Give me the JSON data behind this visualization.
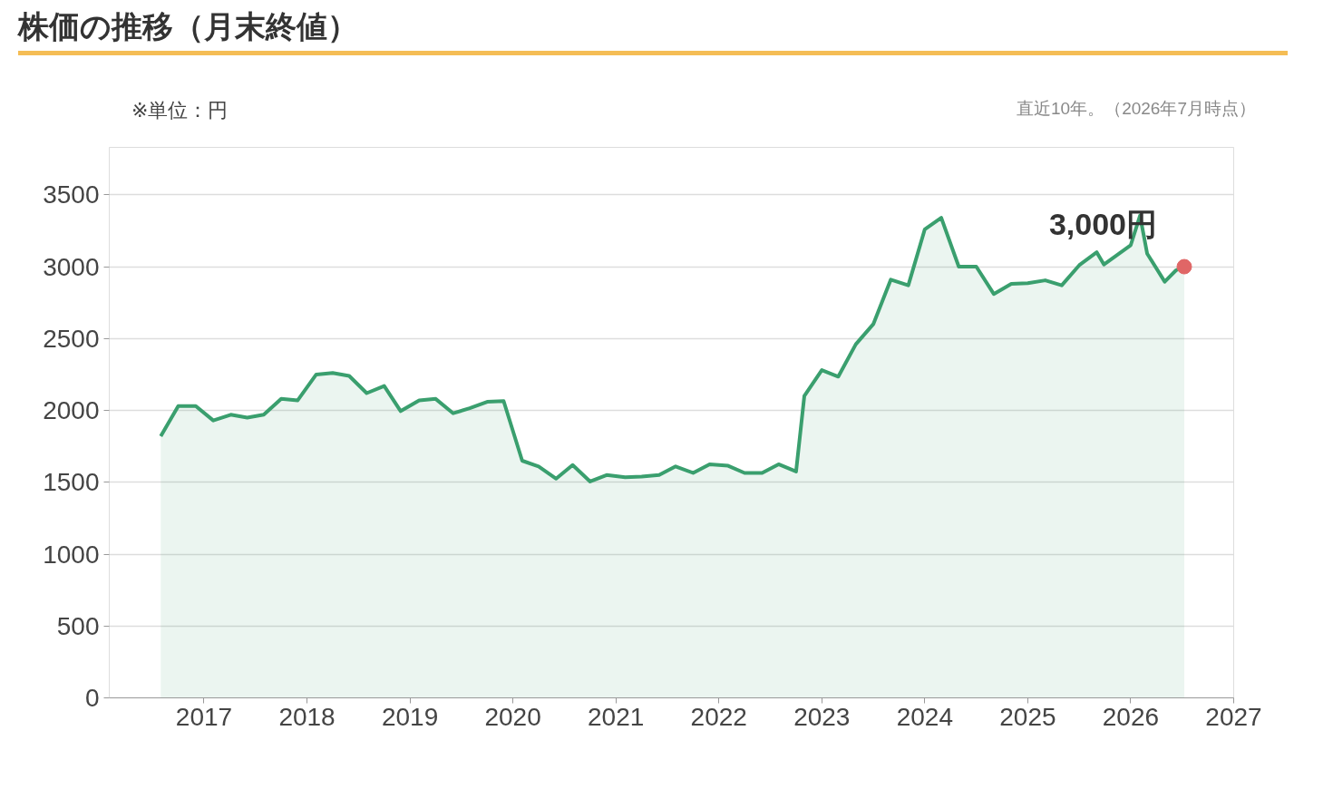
{
  "chart_data": {
    "type": "area",
    "title": "株価の推移（月末終値）",
    "annotations": [
      "※単位：円",
      "直近10年。（2026年7月時点）",
      {
        "text": "3,000円",
        "x": 2026.52,
        "y": 3000
      }
    ],
    "x": [
      2016.58,
      2016.75,
      2016.92,
      2017.09,
      2017.26,
      2017.42,
      2017.58,
      2017.75,
      2017.91,
      2018.09,
      2018.25,
      2018.41,
      2018.58,
      2018.75,
      2018.91,
      2019.09,
      2019.25,
      2019.42,
      2019.58,
      2019.75,
      2019.91,
      2020.09,
      2020.25,
      2020.42,
      2020.58,
      2020.75,
      2020.91,
      2021.09,
      2021.25,
      2021.42,
      2021.58,
      2021.75,
      2021.91,
      2022.09,
      2022.25,
      2022.42,
      2022.58,
      2022.75,
      2022.83,
      2023.0,
      2023.16,
      2023.33,
      2023.5,
      2023.67,
      2023.84,
      2024.0,
      2024.16,
      2024.33,
      2024.5,
      2024.67,
      2024.84,
      2025.0,
      2025.17,
      2025.33,
      2025.5,
      2025.67,
      2025.74,
      2026.0,
      2026.09,
      2026.16,
      2026.33,
      2026.44,
      2026.52
    ],
    "series": [
      {
        "color": "#3a9f6e",
        "values": [
          1820,
          2030,
          2030,
          1930,
          1970,
          1950,
          1970,
          2080,
          2070,
          2250,
          2260,
          2240,
          2120,
          2170,
          1995,
          2070,
          2080,
          1980,
          2015,
          2060,
          2065,
          1650,
          1610,
          1525,
          1620,
          1505,
          1550,
          1535,
          1540,
          1550,
          1610,
          1565,
          1625,
          1615,
          1565,
          1565,
          1625,
          1575,
          2100,
          2280,
          2235,
          2460,
          2600,
          2910,
          2870,
          3260,
          3340,
          3000,
          3000,
          2810,
          2880,
          2885,
          2905,
          2870,
          3010,
          3100,
          3015,
          3150,
          3355,
          3090,
          2895,
          2975,
          3000
        ]
      },
      {
        "type": "scatter",
        "marker": "circle",
        "color": "#e06666",
        "x": [
          2026.52
        ],
        "values": [
          3000
        ]
      }
    ],
    "xlim": [
      2016.08,
      2027
    ],
    "xticks": [
      2017,
      2018,
      2019,
      2020,
      2021,
      2022,
      2023,
      2024,
      2025,
      2026,
      2027
    ],
    "ylim": [
      0,
      3830
    ],
    "yticks": [
      0,
      500,
      1000,
      1500,
      2000,
      2500,
      3000,
      3500
    ],
    "grid": "y"
  }
}
